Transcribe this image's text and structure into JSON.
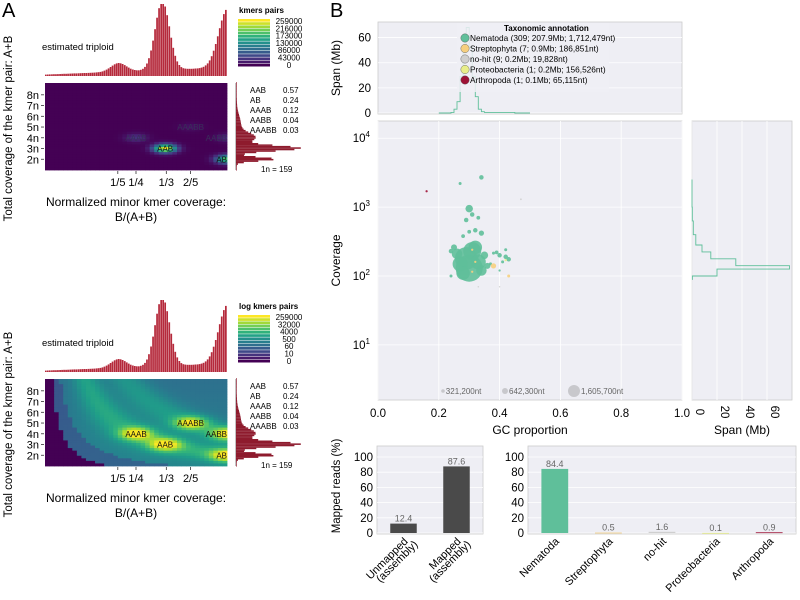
{
  "panel_labels": {
    "a": "A",
    "b": "B"
  },
  "chart_data": [
    {
      "id": "smudgeplot-linear",
      "type": "heatmap",
      "title": "estimated triploid",
      "xlabel": "Normalized minor kmer coverage:",
      "xlabel2": "B/(A+B)",
      "ylabel": "Total coverage of the kmer pair: A+B",
      "xticks": [
        "1/5",
        "1/4",
        "1/3",
        "2/5"
      ],
      "xtick_values": [
        0.2,
        0.25,
        0.3333,
        0.4
      ],
      "xlim": [
        0,
        0.5
      ],
      "yticks": [
        "2n",
        "3n",
        "4n",
        "5n",
        "6n",
        "7n",
        "8n"
      ],
      "ytick_values": [
        2,
        3,
        4,
        5,
        6,
        7,
        8
      ],
      "ylim": [
        1,
        9.1
      ],
      "legend_title": "kmers pairs",
      "legend_labels": [
        "259000",
        "216000",
        "173000",
        "130000",
        "86000",
        "43000",
        "0"
      ],
      "peaks": [
        {
          "label": "AAB",
          "x": 0.33,
          "y": 3,
          "intensity": 1.0
        },
        {
          "label": "AB",
          "x": 0.5,
          "y": 2,
          "intensity": 0.75
        },
        {
          "label": "AAAB",
          "x": 0.25,
          "y": 4,
          "intensity": 0.15
        },
        {
          "label": "AABB",
          "x": 0.5,
          "y": 4,
          "intensity": 0.12
        },
        {
          "label": "AAABB",
          "x": 0.4,
          "y": 5,
          "intensity": 0.05
        }
      ],
      "summary": [
        {
          "label": "AAB",
          "value": "0.57"
        },
        {
          "label": "AB",
          "value": "0.24"
        },
        {
          "label": "AAAB",
          "value": "0.12"
        },
        {
          "label": "AABB",
          "value": "0.04"
        },
        {
          "label": "AAABB",
          "value": "0.03"
        }
      ],
      "n_estimate": "1n =  159",
      "log_scale": false
    },
    {
      "id": "smudgeplot-log",
      "type": "heatmap",
      "title": "estimated triploid",
      "xlabel": "Normalized minor kmer coverage:",
      "xlabel2": "B/(A+B)",
      "ylabel": "Total coverage of the kmer pair: A+B",
      "xticks": [
        "1/5",
        "1/4",
        "1/3",
        "2/5"
      ],
      "xtick_values": [
        0.2,
        0.25,
        0.3333,
        0.4
      ],
      "xlim": [
        0,
        0.5
      ],
      "yticks": [
        "2n",
        "3n",
        "4n",
        "5n",
        "6n",
        "7n",
        "8n"
      ],
      "ytick_values": [
        2,
        3,
        4,
        5,
        6,
        7,
        8
      ],
      "ylim": [
        1,
        9.1
      ],
      "legend_title": "log kmers pairs",
      "legend_labels": [
        "259000",
        "32000",
        "4000",
        "500",
        "60",
        "10",
        "0"
      ],
      "peaks": [
        {
          "label": "AAB",
          "x": 0.33,
          "y": 3
        },
        {
          "label": "AB",
          "x": 0.5,
          "y": 2
        },
        {
          "label": "AAAB",
          "x": 0.25,
          "y": 4
        },
        {
          "label": "AABB",
          "x": 0.5,
          "y": 4
        },
        {
          "label": "AAABB",
          "x": 0.4,
          "y": 5
        }
      ],
      "summary": [
        {
          "label": "AAB",
          "value": "0.57"
        },
        {
          "label": "AB",
          "value": "0.24"
        },
        {
          "label": "AAAB",
          "value": "0.12"
        },
        {
          "label": "AABB",
          "value": "0.04"
        },
        {
          "label": "AAABB",
          "value": "0.03"
        }
      ],
      "n_estimate": "1n =  159",
      "log_scale": true
    },
    {
      "id": "blobplot",
      "type": "scatter",
      "xlabel": "GC proportion",
      "ylabel": "Coverage",
      "xlim": [
        0,
        1
      ],
      "ylim_log10": [
        0.2,
        4.25
      ],
      "xticks": [
        "0.0",
        "0.2",
        "0.4",
        "0.6",
        "0.8",
        "1.0"
      ],
      "yticks": [
        {
          "base": "10",
          "exp": "1",
          "value": 1
        },
        {
          "base": "10",
          "exp": "2",
          "value": 2
        },
        {
          "base": "10",
          "exp": "3",
          "value": 3
        },
        {
          "base": "10",
          "exp": "4",
          "value": 4
        }
      ],
      "legend_title": "Taxonomic annotation",
      "legend_placement": "top-right",
      "series": [
        {
          "name": "Nematoda (309; 207.9Mb; 1,712,479nt)",
          "color": "#5fbf9a"
        },
        {
          "name": "Streptophyta (7; 0.9Mb; 186,851nt)",
          "color": "#f6cf7f"
        },
        {
          "name": "no-hit (9; 0.2Mb; 19,828nt)",
          "color": "#cfcfcf"
        },
        {
          "name": "Proteobacteria (1; 0.2Mb; 156,526nt)",
          "color": "#e8ee8a"
        },
        {
          "name": "Arthropoda (1; 0.1Mb; 65,115nt)",
          "color": "#9e1236"
        }
      ],
      "size_legend": [
        "321,200nt",
        "642,300nt",
        "1,605,700nt"
      ],
      "points": [
        {
          "x": 0.3,
          "y": 130,
          "r": 18,
          "s": 0
        },
        {
          "x": 0.29,
          "y": 180,
          "r": 15,
          "s": 0
        },
        {
          "x": 0.31,
          "y": 230,
          "r": 12,
          "s": 0
        },
        {
          "x": 0.27,
          "y": 150,
          "r": 10,
          "s": 0
        },
        {
          "x": 0.33,
          "y": 160,
          "r": 10,
          "s": 0
        },
        {
          "x": 0.32,
          "y": 260,
          "r": 9,
          "s": 0
        },
        {
          "x": 0.28,
          "y": 110,
          "r": 9,
          "s": 0
        },
        {
          "x": 0.34,
          "y": 120,
          "r": 7,
          "s": 0
        },
        {
          "x": 0.26,
          "y": 210,
          "r": 7,
          "s": 0
        },
        {
          "x": 0.35,
          "y": 200,
          "r": 5,
          "s": 0
        },
        {
          "x": 0.25,
          "y": 260,
          "r": 4,
          "s": 0
        },
        {
          "x": 0.24,
          "y": 230,
          "r": 3,
          "s": 0
        },
        {
          "x": 0.36,
          "y": 140,
          "r": 4,
          "s": 0
        },
        {
          "x": 0.3,
          "y": 950,
          "r": 5,
          "s": 0
        },
        {
          "x": 0.31,
          "y": 780,
          "r": 3,
          "s": 0
        },
        {
          "x": 0.29,
          "y": 650,
          "r": 3,
          "s": 0
        },
        {
          "x": 0.33,
          "y": 700,
          "r": 2.5,
          "s": 0
        },
        {
          "x": 0.32,
          "y": 460,
          "r": 3,
          "s": 0
        },
        {
          "x": 0.34,
          "y": 420,
          "r": 3.5,
          "s": 0
        },
        {
          "x": 0.3,
          "y": 440,
          "r": 2.5,
          "s": 0
        },
        {
          "x": 0.28,
          "y": 380,
          "r": 2.5,
          "s": 0
        },
        {
          "x": 0.34,
          "y": 2700,
          "r": 3,
          "s": 0
        },
        {
          "x": 0.27,
          "y": 2200,
          "r": 2,
          "s": 0
        },
        {
          "x": 0.4,
          "y": 200,
          "r": 3,
          "s": 0
        },
        {
          "x": 0.42,
          "y": 190,
          "r": 3,
          "s": 0
        },
        {
          "x": 0.39,
          "y": 220,
          "r": 2.5,
          "s": 0
        },
        {
          "x": 0.43,
          "y": 175,
          "r": 3,
          "s": 0
        },
        {
          "x": 0.41,
          "y": 160,
          "r": 2,
          "s": 0
        },
        {
          "x": 0.38,
          "y": 215,
          "r": 2,
          "s": 0
        },
        {
          "x": 0.37,
          "y": 150,
          "r": 2,
          "s": 0
        },
        {
          "x": 0.42,
          "y": 240,
          "r": 2,
          "s": 0
        },
        {
          "x": 0.24,
          "y": 100,
          "r": 2,
          "s": 0
        },
        {
          "x": 0.4,
          "y": 120,
          "r": 1.5,
          "s": 0
        },
        {
          "x": 0.38,
          "y": 140,
          "r": 3.5,
          "s": 1
        },
        {
          "x": 0.43,
          "y": 100,
          "r": 2,
          "s": 1
        },
        {
          "x": 0.31,
          "y": 240,
          "r": 1.5,
          "s": 1
        },
        {
          "x": 0.32,
          "y": 160,
          "r": 1.5,
          "s": 1
        },
        {
          "x": 0.31,
          "y": 115,
          "r": 1.5,
          "s": 1
        },
        {
          "x": 0.33,
          "y": 70,
          "r": 1,
          "s": 2
        },
        {
          "x": 0.4,
          "y": 70,
          "r": 1,
          "s": 2
        },
        {
          "x": 0.47,
          "y": 1300,
          "r": 1.2,
          "s": 2
        },
        {
          "x": 0.42,
          "y": 170,
          "r": 1.5,
          "s": 3
        },
        {
          "x": 0.16,
          "y": 1700,
          "r": 1.5,
          "s": 4
        }
      ]
    },
    {
      "id": "gc-span-histogram",
      "type": "line",
      "ylabel": "Span (Mb)",
      "yticks": [
        "0",
        "20",
        "40",
        "60"
      ],
      "ylim": [
        0,
        70
      ],
      "xlim": [
        0,
        1
      ],
      "x": [
        0.24,
        0.25,
        0.26,
        0.27,
        0.28,
        0.29,
        0.3,
        0.31,
        0.32,
        0.33,
        0.34,
        0.35,
        0.4,
        0.45
      ],
      "values": [
        0.5,
        3,
        9,
        29,
        48,
        68,
        52,
        29,
        13,
        3,
        1,
        0.5,
        0.5,
        0
      ]
    },
    {
      "id": "coverage-span-histogram",
      "type": "line",
      "xlabel": "Span (Mb)",
      "xticks": [
        "0",
        "20",
        "40",
        "60"
      ],
      "xlim": [
        0,
        80
      ],
      "y_log10": [
        3.0,
        2.8,
        2.6,
        2.45,
        2.35,
        2.25,
        2.15,
        2.1,
        2.0
      ],
      "values": [
        0.2,
        1,
        3,
        8,
        15,
        35,
        78,
        20,
        0.3
      ]
    },
    {
      "id": "mapped-reads",
      "type": "bar",
      "ylabel": "Mapped reads (%)",
      "ylim": [
        0,
        100
      ],
      "yticks": [
        "0",
        "20",
        "40",
        "60",
        "80",
        "100"
      ],
      "categories": [
        "Unmapped\n(assembly)",
        "Mapped\n(assembly)"
      ],
      "category_lines": [
        [
          "Unmapped",
          "(assembly)"
        ],
        [
          "Mapped",
          "(assembly)"
        ]
      ],
      "values": [
        12.4,
        87.6
      ],
      "labels": [
        "12.4",
        "87.6"
      ],
      "color": "#4a4a4a"
    },
    {
      "id": "mapped-reads-by-taxon",
      "type": "bar",
      "ylim": [
        0,
        100
      ],
      "yticks": [
        "0",
        "20",
        "40",
        "60",
        "80",
        "100"
      ],
      "categories": [
        "Nematoda",
        "Streptophyta",
        "no-hit",
        "Proteobacteria",
        "Arthropoda"
      ],
      "values": [
        84.4,
        0.5,
        1.6,
        0.1,
        0.9
      ],
      "labels": [
        "84.4",
        "0.5",
        "1.6",
        "0.1",
        "0.9"
      ],
      "colors": [
        "#5fbf9a",
        "#f6cf7f",
        "#cfcfcf",
        "#e8ee8a",
        "#9e1236"
      ]
    }
  ]
}
